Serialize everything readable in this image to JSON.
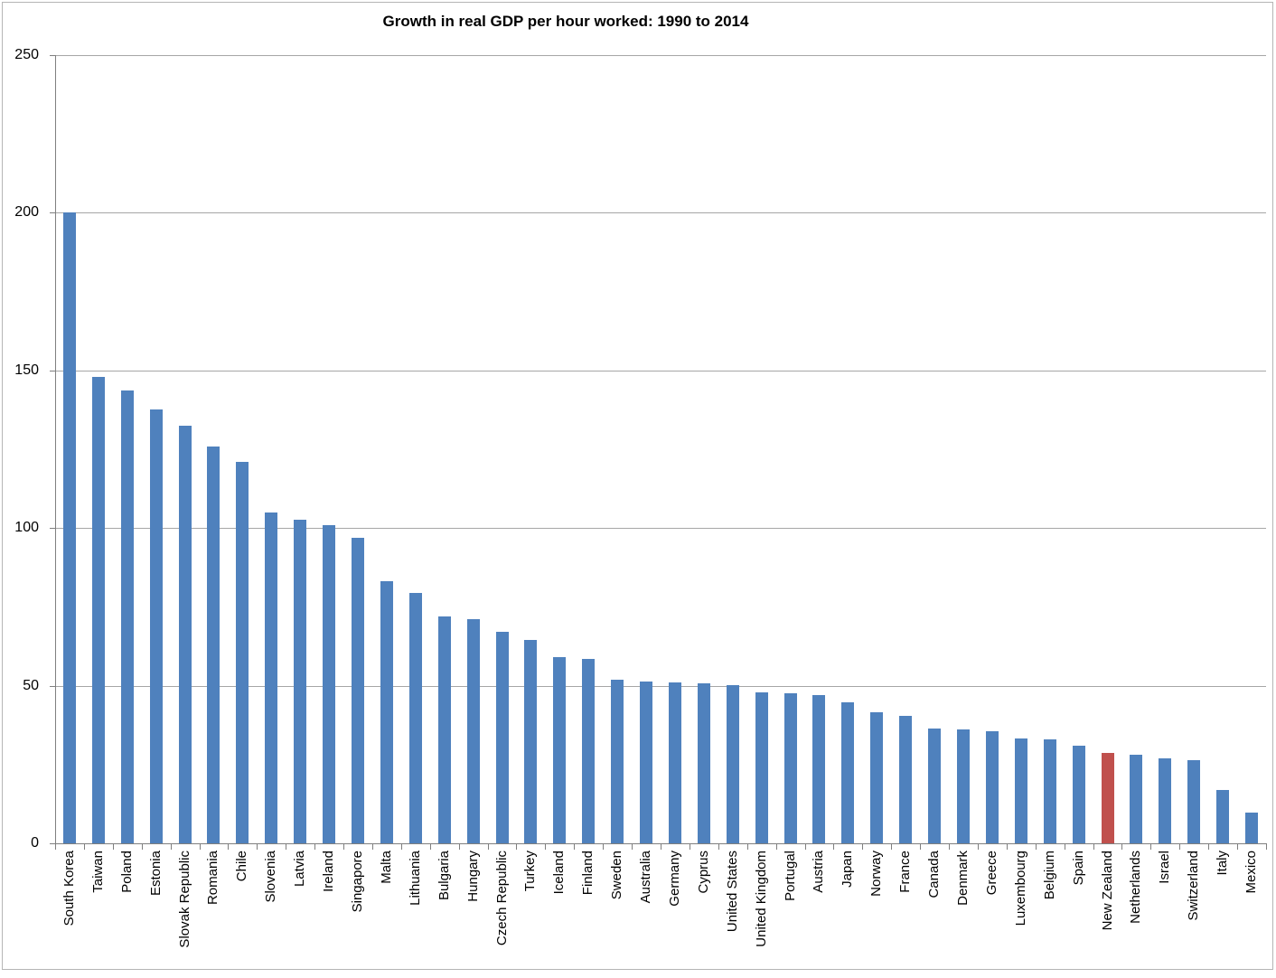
{
  "chart_data": {
    "type": "bar",
    "title": "Growth in real GDP per hour worked: 1990 to 2014",
    "xlabel": "",
    "ylabel": "",
    "ylim": [
      0,
      250
    ],
    "yticks": [
      0,
      50,
      100,
      150,
      200,
      250
    ],
    "grid": true,
    "legend": false,
    "bar_color": "#4F81BD",
    "highlight_color": "#C0504D",
    "highlight_category": "New Zealand",
    "categories": [
      "South Korea",
      "Taiwan",
      "Poland",
      "Estonia",
      "Slovak Republic",
      "Romania",
      "Chile",
      "Slovenia",
      "Latvia",
      "Ireland",
      "Singapore",
      "Malta",
      "Lithuania",
      "Bulgaria",
      "Hungary",
      "Czech Republic",
      "Turkey",
      "Iceland",
      "Finland",
      "Sweden",
      "Australia",
      "Germany",
      "Cyprus",
      "United States",
      "United Kingdom",
      "Portugal",
      "Austria",
      "Japan",
      "Norway",
      "France",
      "Canada",
      "Denmark",
      "Greece",
      "Luxembourg",
      "Belgium",
      "Spain",
      "New Zealand",
      "Netherlands",
      "Israel",
      "Switzerland",
      "Italy",
      "Mexico"
    ],
    "values": [
      200,
      148,
      143.5,
      137.5,
      132.5,
      126,
      121,
      105,
      102.5,
      101,
      97,
      83,
      79.5,
      72,
      71,
      67,
      64.5,
      59,
      58.5,
      52,
      51.3,
      51,
      50.8,
      50.3,
      48,
      47.5,
      47,
      44.8,
      41.5,
      40.3,
      36.5,
      36,
      35.5,
      33.2,
      33,
      31,
      28.7,
      28,
      27,
      26.3,
      17,
      9.8
    ]
  }
}
